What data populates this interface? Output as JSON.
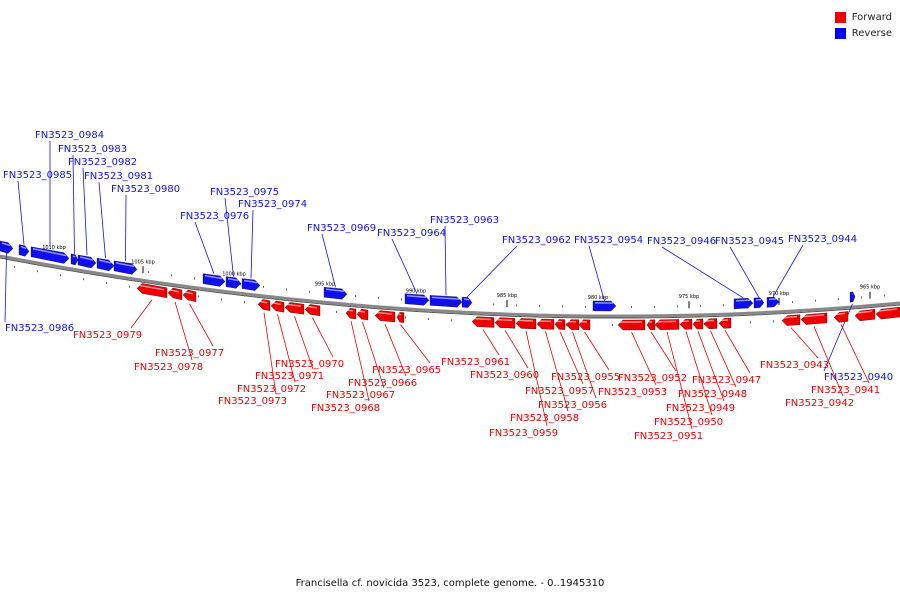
{
  "caption": "Francisella cf. novicida 3523, complete genome. - 0..1945310",
  "legend": [
    {
      "label": "Forward",
      "color": "#ee0000"
    },
    {
      "label": "Reverse",
      "color": "#0000ee"
    }
  ],
  "colors": {
    "forward": "#ee0000",
    "reverse": "#1010ee",
    "backbone": "#888888"
  },
  "ticks": [
    {
      "label": "1010 kbp"
    },
    {
      "label": "1005 kbp"
    },
    {
      "label": "1000 kbp"
    },
    {
      "label": "995 kbp"
    },
    {
      "label": "990 kbp"
    },
    {
      "label": "985 kbp"
    },
    {
      "label": "980 kbp"
    },
    {
      "label": "975 kbp"
    },
    {
      "label": "970 kbp"
    },
    {
      "label": "965 kbp"
    }
  ],
  "reverse_genes": [
    "FN3523_0986",
    "FN3523_0985",
    "FN3523_0984",
    "FN3523_0983",
    "FN3523_0982",
    "FN3523_0981",
    "FN3523_0980",
    "FN3523_0976",
    "FN3523_0975",
    "FN3523_0974",
    "FN3523_0969",
    "FN3523_0964",
    "FN3523_0963",
    "FN3523_0962",
    "FN3523_0954",
    "FN3523_0946",
    "FN3523_0945",
    "FN3523_0944",
    "FN3523_0940"
  ],
  "forward_genes": [
    "FN3523_0979",
    "FN3523_0978",
    "FN3523_0977",
    "FN3523_0973",
    "FN3523_0972",
    "FN3523_0971",
    "FN3523_0970",
    "FN3523_0968",
    "FN3523_0967",
    "FN3523_0966",
    "FN3523_0965",
    "FN3523_0961",
    "FN3523_0960",
    "FN3523_0959",
    "FN3523_0958",
    "FN3523_0957",
    "FN3523_0956",
    "FN3523_0955",
    "FN3523_0953",
    "FN3523_0952",
    "FN3523_0951",
    "FN3523_0950",
    "FN3523_0949",
    "FN3523_0948",
    "FN3523_0947",
    "FN3523_0943",
    "FN3523_0942",
    "FN3523_0941"
  ]
}
